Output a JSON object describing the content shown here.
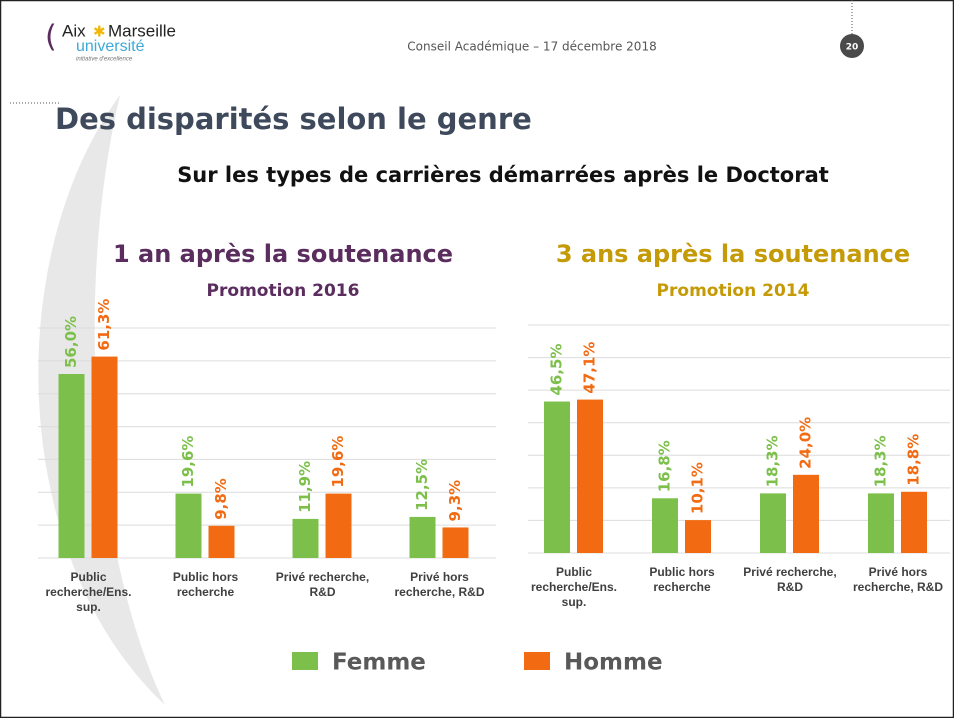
{
  "header": {
    "logo": {
      "aix": "Aix",
      "marseille": "Marseille",
      "universite": "université",
      "tagline": "initiative d'excellence"
    },
    "event": "Conseil Académique – 17 décembre 2018",
    "page": "20"
  },
  "title": "Des disparités selon le genre",
  "subtitle": "Sur les types de carrières démarrées après le Doctorat",
  "chart_data": [
    {
      "type": "bar",
      "title": "1 an après la soutenance",
      "subtitle": "Promotion 2016",
      "title_color": "#5b2c5e",
      "subtitle_color": "#5b2c5e",
      "categories": [
        "Public recherche/Ens. sup.",
        "Public hors recherche",
        "Privé recherche, R&D",
        "Privé hors recherche, R&D"
      ],
      "series": [
        {
          "name": "Femme",
          "color": "#7cc04b",
          "values": [
            56.0,
            19.6,
            11.9,
            12.5
          ],
          "value_labels": [
            "56,0%",
            "19,6%",
            "11,9%",
            "12,5%"
          ]
        },
        {
          "name": "Homme",
          "color": "#f26b12",
          "values": [
            61.3,
            9.8,
            19.6,
            9.3
          ],
          "value_labels": [
            "61,3%",
            "9,8%",
            "19,6%",
            "9,3%"
          ]
        }
      ],
      "ylim": [
        0,
        70
      ],
      "yticks": [
        0,
        10,
        20,
        30,
        40,
        50,
        60,
        70
      ],
      "grid": true,
      "legend": "bottom"
    },
    {
      "type": "bar",
      "title": "3 ans après la soutenance",
      "subtitle": "Promotion 2014",
      "title_color": "#c49a06",
      "subtitle_color": "#c49a06",
      "categories": [
        "Public recherche/Ens. sup.",
        "Public hors recherche",
        "Privé recherche, R&D",
        "Privé hors recherche, R&D"
      ],
      "series": [
        {
          "name": "Femme",
          "color": "#7cc04b",
          "values": [
            46.5,
            16.8,
            18.3,
            18.3
          ],
          "value_labels": [
            "46,5%",
            "16,8%",
            "18,3%",
            "18,3%"
          ]
        },
        {
          "name": "Homme",
          "color": "#f26b12",
          "values": [
            47.1,
            10.1,
            24.0,
            18.8
          ],
          "value_labels": [
            "47,1%",
            "10,1%",
            "24,0%",
            "18,8%"
          ]
        }
      ],
      "ylim": [
        0,
        70
      ],
      "yticks": [
        0,
        10,
        20,
        30,
        40,
        50,
        60,
        70
      ],
      "grid": true
    }
  ]
}
